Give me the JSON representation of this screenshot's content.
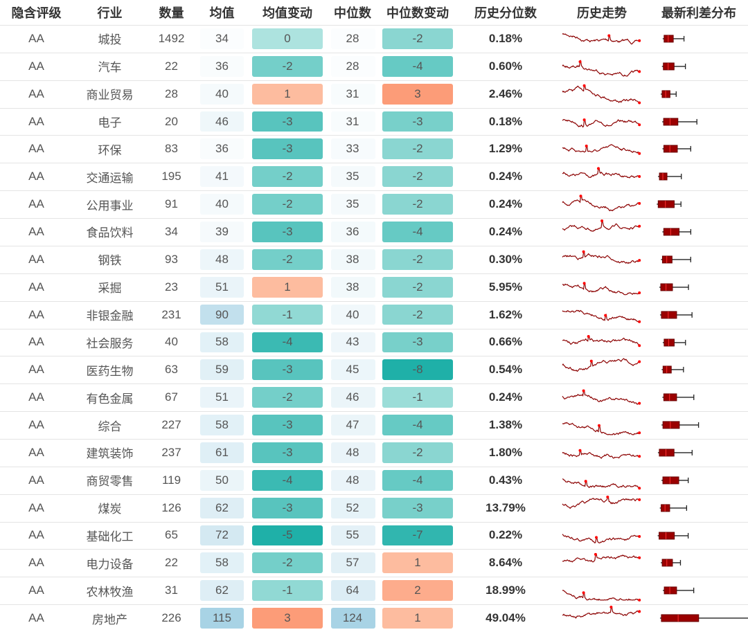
{
  "header": [
    "隐含评级",
    "行业",
    "数量",
    "均值",
    "均值变动",
    "中位数",
    "中位数变动",
    "历史分位数",
    "历史走势",
    "最新利差分布"
  ],
  "rows": [
    [
      "AA",
      "城投",
      1492,
      34,
      0,
      28,
      -2,
      "0.18%"
    ],
    [
      "AA",
      "汽车",
      22,
      36,
      -2,
      28,
      -4,
      "0.60%"
    ],
    [
      "AA",
      "商业贸易",
      28,
      40,
      1,
      31,
      3,
      "2.46%"
    ],
    [
      "AA",
      "电子",
      20,
      46,
      -3,
      31,
      -3,
      "0.18%"
    ],
    [
      "AA",
      "环保",
      83,
      36,
      -3,
      33,
      -2,
      "1.29%"
    ],
    [
      "AA",
      "交通运输",
      195,
      41,
      -2,
      35,
      -2,
      "0.24%"
    ],
    [
      "AA",
      "公用事业",
      91,
      40,
      -2,
      35,
      -2,
      "0.24%"
    ],
    [
      "AA",
      "食品饮料",
      34,
      39,
      -3,
      36,
      -4,
      "0.24%"
    ],
    [
      "AA",
      "钢铁",
      93,
      48,
      -2,
      38,
      -2,
      "0.30%"
    ],
    [
      "AA",
      "采掘",
      23,
      51,
      1,
      38,
      -2,
      "5.95%"
    ],
    [
      "AA",
      "非银金融",
      231,
      90,
      -1,
      40,
      -2,
      "1.62%"
    ],
    [
      "AA",
      "社会服务",
      40,
      58,
      -4,
      43,
      -3,
      "0.66%"
    ],
    [
      "AA",
      "医药生物",
      63,
      59,
      -3,
      45,
      -8,
      "0.54%"
    ],
    [
      "AA",
      "有色金属",
      67,
      51,
      -2,
      46,
      -1,
      "0.24%"
    ],
    [
      "AA",
      "综合",
      227,
      58,
      -3,
      47,
      -4,
      "1.38%"
    ],
    [
      "AA",
      "建筑装饰",
      237,
      61,
      -3,
      48,
      -2,
      "1.80%"
    ],
    [
      "AA",
      "商贸零售",
      119,
      50,
      -4,
      48,
      -4,
      "0.43%"
    ],
    [
      "AA",
      "煤炭",
      126,
      62,
      -3,
      52,
      -3,
      "13.79%"
    ],
    [
      "AA",
      "基础化工",
      65,
      72,
      -5,
      55,
      -7,
      "0.22%"
    ],
    [
      "AA",
      "电力设备",
      22,
      58,
      -2,
      57,
      1,
      "8.64%"
    ],
    [
      "AA",
      "农林牧渔",
      31,
      62,
      -1,
      64,
      2,
      "18.99%"
    ],
    [
      "AA",
      "房地产",
      226,
      115,
      3,
      124,
      1,
      "49.04%"
    ]
  ]
}
